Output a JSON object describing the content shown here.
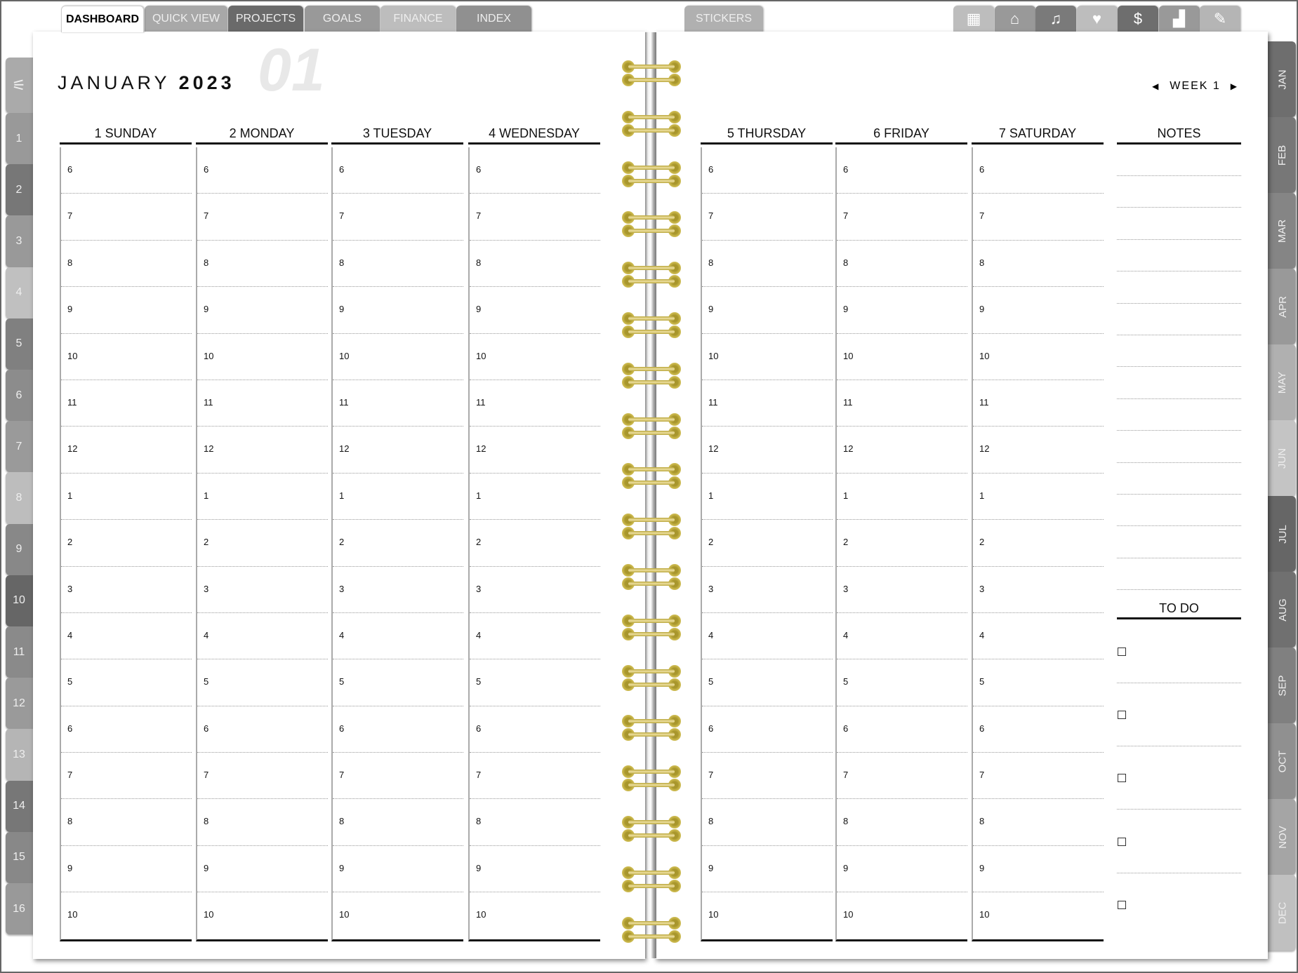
{
  "top_tabs": [
    {
      "label": "DASHBOARD",
      "color": "#ffffff",
      "active": true
    },
    {
      "label": "QUICK VIEW",
      "color": "#a8a8a8"
    },
    {
      "label": "PROJECTS",
      "color": "#6a6a6a"
    },
    {
      "label": "GOALS",
      "color": "#999999"
    },
    {
      "label": "FINANCE",
      "color": "#bdbdbd"
    },
    {
      "label": "INDEX",
      "color": "#909090"
    }
  ],
  "stickers_tab": {
    "label": "STICKERS",
    "color": "#b0b0b0"
  },
  "icon_tabs": [
    {
      "icon": "calendar-icon",
      "color": "#bdbdbd"
    },
    {
      "icon": "house-plant-icon",
      "color": "#999999"
    },
    {
      "icon": "media-icon",
      "color": "#7a7a7a"
    },
    {
      "icon": "fitness-icon",
      "color": "#bdbdbd"
    },
    {
      "icon": "coins-icon",
      "color": "#6e6e6e"
    },
    {
      "icon": "chart-icon",
      "color": "#999999"
    },
    {
      "icon": "pencil-icon",
      "color": "#b5b5b5"
    }
  ],
  "left_tabs": [
    {
      "label": "",
      "icon": "settings-sliders-icon",
      "color": "#aaaaaa"
    },
    {
      "label": "1",
      "color": "#999999"
    },
    {
      "label": "2",
      "color": "#777777"
    },
    {
      "label": "3",
      "color": "#999999"
    },
    {
      "label": "4",
      "color": "#c0c0c0"
    },
    {
      "label": "5",
      "color": "#808080"
    },
    {
      "label": "6",
      "color": "#8c8c8c"
    },
    {
      "label": "7",
      "color": "#9a9a9a"
    },
    {
      "label": "8",
      "color": "#bdbdbd"
    },
    {
      "label": "9",
      "color": "#888888"
    },
    {
      "label": "10",
      "color": "#666666"
    },
    {
      "label": "11",
      "color": "#8a8a8a"
    },
    {
      "label": "12",
      "color": "#9a9a9a"
    },
    {
      "label": "13",
      "color": "#b5b5b5"
    },
    {
      "label": "14",
      "color": "#777777"
    },
    {
      "label": "15",
      "color": "#888888"
    },
    {
      "label": "16",
      "color": "#999999"
    }
  ],
  "month_tabs": [
    {
      "label": "JAN",
      "color": "#6e6e6e"
    },
    {
      "label": "FEB",
      "color": "#777777"
    },
    {
      "label": "MAR",
      "color": "#858585"
    },
    {
      "label": "APR",
      "color": "#999999"
    },
    {
      "label": "MAY",
      "color": "#b0b0b0"
    },
    {
      "label": "JUN",
      "color": "#c4c4c4"
    },
    {
      "label": "JUL",
      "color": "#666666"
    },
    {
      "label": "AUG",
      "color": "#707070"
    },
    {
      "label": "SEP",
      "color": "#808080"
    },
    {
      "label": "OCT",
      "color": "#909090"
    },
    {
      "label": "NOV",
      "color": "#a5a5a5"
    },
    {
      "label": "DEC",
      "color": "#c0c0c0"
    }
  ],
  "header": {
    "month": "JANUARY",
    "year": "2023",
    "month_number": "01",
    "week_label": "WEEK 1"
  },
  "days": [
    "1 SUNDAY",
    "2 MONDAY",
    "3 TUESDAY",
    "4 WEDNESDAY",
    "5 THURSDAY",
    "6 FRIDAY",
    "7 SATURDAY"
  ],
  "hours": [
    "6",
    "7",
    "8",
    "9",
    "10",
    "11",
    "12",
    "1",
    "2",
    "3",
    "4",
    "5",
    "6",
    "7",
    "8",
    "9",
    "10"
  ],
  "notes": {
    "title": "NOTES"
  },
  "todo": {
    "title": "TO DO",
    "items": 5
  },
  "colors": {
    "spiral": "#c8b548"
  }
}
